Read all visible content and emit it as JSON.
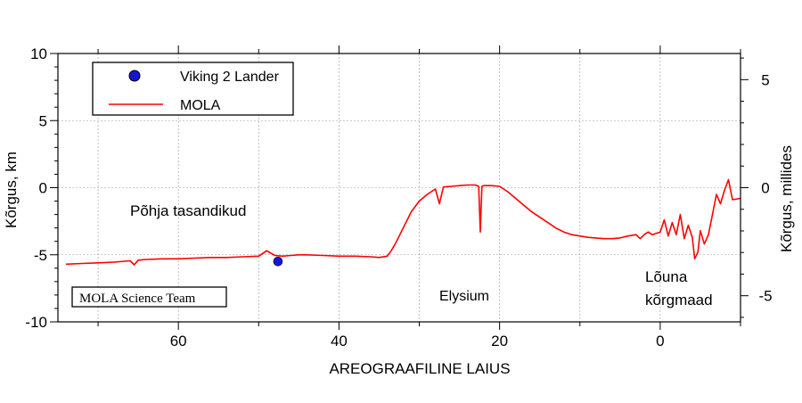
{
  "chart_data": {
    "type": "line",
    "xlabel": "AREOGRAAFILINE LAIUS",
    "ylabel": "Kõrgus, km",
    "ylabel_right": "Kõrgus, millides",
    "xlim": [
      75,
      -10
    ],
    "ylim": [
      -10,
      10
    ],
    "ylim_right_miles": [
      -6.21,
      6.21
    ],
    "x_ticks": [
      60,
      40,
      20,
      0
    ],
    "x_tick_labels": [
      "60",
      "40",
      "20",
      "0"
    ],
    "x_minor_ticks": [
      70,
      50,
      30,
      10,
      -10
    ],
    "y_ticks": [
      -10,
      -5,
      0,
      5,
      10
    ],
    "y_tick_labels": [
      "-10",
      "-5",
      "0",
      "5",
      "10"
    ],
    "y_right_ticks": [
      -5,
      0,
      5
    ],
    "y_right_tick_labels": [
      "-5",
      "0",
      "5"
    ],
    "grid": true,
    "legend_placement": "top-left",
    "legend": [
      {
        "label": "Viking 2 Lander",
        "marker": "circle",
        "color": "#1515d8"
      },
      {
        "label": "MOLA",
        "marker": "line",
        "color": "#ff0000"
      }
    ],
    "series": [
      {
        "name": "MOLA",
        "color": "#ff0000",
        "x": [
          74,
          72,
          70,
          68,
          66,
          65.5,
          65,
          64,
          62,
          60,
          58,
          56,
          54,
          52,
          50,
          49,
          48,
          47,
          46,
          45,
          44,
          42,
          40,
          38,
          36,
          35,
          34,
          33.5,
          33,
          32,
          31,
          30,
          29,
          28,
          27.5,
          27,
          26,
          25,
          24,
          23,
          22.6,
          22.4,
          22.2,
          22,
          21,
          20,
          19,
          18,
          17,
          16,
          15,
          14,
          13,
          12,
          11,
          10,
          9,
          8,
          7,
          6,
          5,
          4,
          3,
          2.5,
          2,
          1.5,
          1,
          0,
          -0.5,
          -1,
          -1.5,
          -2,
          -2.5,
          -3,
          -3.5,
          -4,
          -4.3,
          -4.7,
          -5,
          -5.5,
          -6,
          -6.5,
          -7,
          -7.5,
          -8,
          -8.5,
          -9,
          -10
        ],
        "y": [
          -5.7,
          -5.65,
          -5.6,
          -5.55,
          -5.45,
          -5.75,
          -5.4,
          -5.35,
          -5.3,
          -5.3,
          -5.25,
          -5.2,
          -5.2,
          -5.15,
          -5.1,
          -4.7,
          -5.05,
          -5.1,
          -5.05,
          -5.0,
          -5.0,
          -5.05,
          -5.1,
          -5.1,
          -5.15,
          -5.2,
          -5.1,
          -4.7,
          -4.2,
          -3.0,
          -1.8,
          -1.0,
          -0.5,
          -0.1,
          -1.2,
          0.05,
          0.1,
          0.15,
          0.2,
          0.2,
          0.1,
          -3.3,
          0.1,
          0.15,
          0.15,
          0.1,
          -0.3,
          -0.8,
          -1.3,
          -1.8,
          -2.2,
          -2.6,
          -3.0,
          -3.3,
          -3.5,
          -3.6,
          -3.7,
          -3.75,
          -3.8,
          -3.8,
          -3.75,
          -3.6,
          -3.5,
          -3.8,
          -3.5,
          -3.3,
          -3.5,
          -3.3,
          -2.4,
          -3.6,
          -2.6,
          -3.5,
          -2.0,
          -3.8,
          -2.8,
          -3.7,
          -5.3,
          -4.8,
          -3.2,
          -4.2,
          -3.5,
          -2.0,
          -0.5,
          -1.2,
          -0.2,
          0.6,
          -0.9,
          -0.8
        ]
      },
      {
        "name": "Viking 2 Lander",
        "color": "#1515d8",
        "x": [
          47.6
        ],
        "y": [
          -5.5
        ]
      }
    ],
    "annotations": [
      {
        "text": "Põhja tasandikud",
        "x": 65,
        "y": -2.0
      },
      {
        "text": "Elysium",
        "x": 25,
        "y": -8.0
      },
      {
        "text": "Lõuna",
        "x": 1.5,
        "y": -6.5
      },
      {
        "text": "kõrgmaad",
        "x": 1.5,
        "y": -8.4
      }
    ],
    "credit": "MOLA Science Team"
  }
}
